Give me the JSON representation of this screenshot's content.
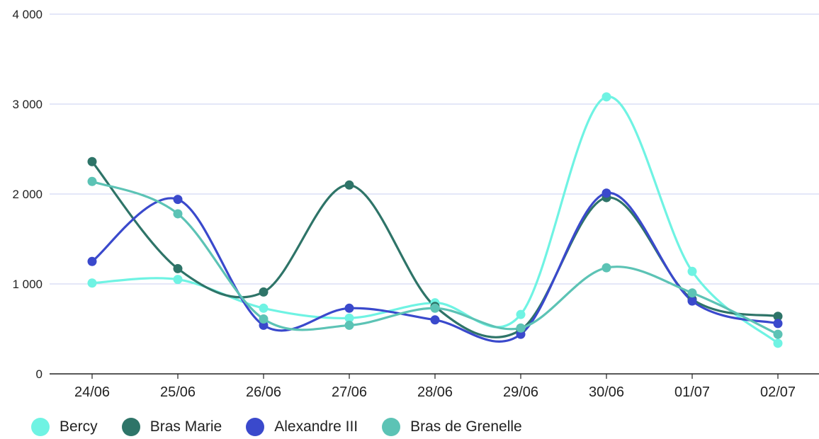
{
  "chart_data": {
    "type": "line",
    "categories": [
      "24/06",
      "25/06",
      "26/06",
      "27/06",
      "28/06",
      "29/06",
      "30/06",
      "01/07",
      "02/07"
    ],
    "ylim": [
      0,
      4000
    ],
    "yticks": [
      {
        "value": 0,
        "label": "0"
      },
      {
        "value": 1000,
        "label": "1 000"
      },
      {
        "value": 2000,
        "label": "2 000"
      },
      {
        "value": 3000,
        "label": "3 000"
      },
      {
        "value": 4000,
        "label": "4 000"
      }
    ],
    "grid": true,
    "legend": "bottom-left",
    "series": [
      {
        "name": "Bercy",
        "color": "#6ff3e3",
        "values": [
          1010,
          1050,
          730,
          620,
          790,
          660,
          3080,
          1140,
          340
        ]
      },
      {
        "name": "Bras Marie",
        "color": "#2e7468",
        "values": [
          2360,
          1170,
          910,
          2100,
          750,
          490,
          1960,
          830,
          640
        ]
      },
      {
        "name": "Alexandre III",
        "color": "#3a49cc",
        "values": [
          1250,
          1940,
          540,
          730,
          600,
          440,
          2010,
          810,
          560
        ]
      },
      {
        "name": "Bras de Grenelle",
        "color": "#5cc3b5",
        "values": [
          2140,
          1780,
          610,
          540,
          730,
          510,
          1180,
          900,
          440
        ]
      }
    ]
  }
}
